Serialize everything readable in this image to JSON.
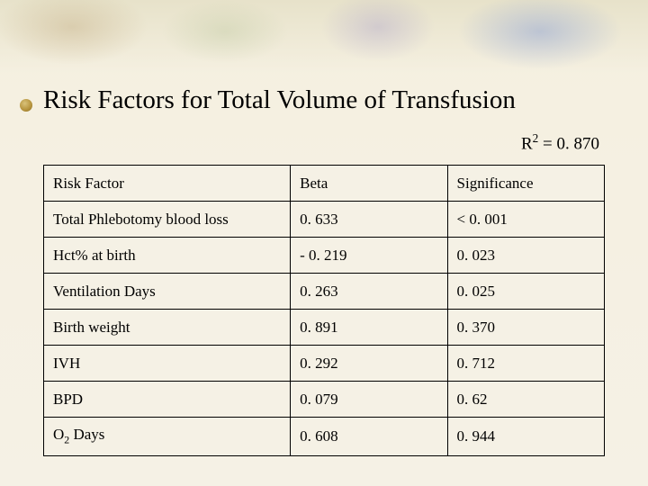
{
  "title": "Risk Factors for Total Volume of Transfusion",
  "r2_prefix": "R",
  "r2_sup": "2",
  "r2_eq": " = 0. 870",
  "table": {
    "columns": [
      "Risk Factor",
      "Beta",
      "Significance"
    ],
    "rows": [
      {
        "factor_html": "Total Phlebotomy blood loss",
        "beta": "0. 633",
        "sig": "< 0. 001"
      },
      {
        "factor_html": "Hct% at birth",
        "beta": "- 0. 219",
        "sig": "0. 023"
      },
      {
        "factor_html": "Ventilation Days",
        "beta": "0. 263",
        "sig": "0. 025"
      },
      {
        "factor_html": "Birth weight",
        "beta": "0. 891",
        "sig": "0. 370"
      },
      {
        "factor_html": "IVH",
        "beta": "0. 292",
        "sig": "0. 712"
      },
      {
        "factor_html": "BPD",
        "beta": "0. 079",
        "sig": "0. 62"
      },
      {
        "factor_html": "O<sub>2</sub> Days",
        "beta": "0. 608",
        "sig": "0. 944"
      }
    ],
    "col_widths": [
      "44%",
      "28%",
      "28%"
    ],
    "border_color": "#000000",
    "cell_fontsize": 17,
    "title_fontsize": 29,
    "r2_fontsize": 19
  },
  "colors": {
    "background": "#f5f1e5",
    "text": "#000000",
    "border": "#000000"
  }
}
